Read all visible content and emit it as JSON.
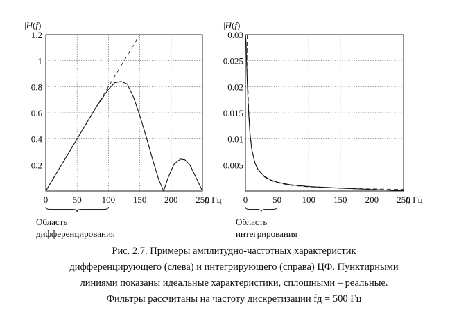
{
  "chart_data": [
    {
      "type": "line",
      "ylabel": "|H(f)|",
      "xlabel": "f, Гц",
      "xlim": [
        0,
        250
      ],
      "ylim": [
        0,
        1.2
      ],
      "grid": true,
      "x_ticks": [
        "0",
        "50",
        "100",
        "150",
        "200",
        "250"
      ],
      "y_ticks": [
        "0.2",
        "0.4",
        "0.6",
        "0.8",
        "1",
        "1.2"
      ],
      "region_label": [
        "Область",
        "дифференцирования"
      ],
      "region_range": [
        0,
        100
      ],
      "series": [
        {
          "style": "dashed",
          "x": [
            0,
            25,
            50,
            75,
            100,
            125,
            150
          ],
          "y": [
            0,
            0.2,
            0.4,
            0.6,
            0.8,
            1.0,
            1.2
          ]
        },
        {
          "style": "solid",
          "x": [
            0,
            20,
            40,
            60,
            80,
            100,
            110,
            120,
            130,
            140,
            150,
            160,
            170,
            180,
            188,
            195,
            205,
            215,
            222,
            230,
            240,
            250
          ],
          "y": [
            0,
            0.16,
            0.32,
            0.48,
            0.64,
            0.78,
            0.83,
            0.84,
            0.82,
            0.72,
            0.58,
            0.42,
            0.25,
            0.09,
            0.0,
            0.1,
            0.21,
            0.245,
            0.24,
            0.2,
            0.1,
            0.0
          ]
        }
      ]
    },
    {
      "type": "line",
      "ylabel": "|H(f)|",
      "xlabel": "f, Гц",
      "xlim": [
        0,
        250
      ],
      "ylim": [
        0,
        0.03
      ],
      "grid": true,
      "x_ticks": [
        "0",
        "50",
        "100",
        "150",
        "200",
        "250"
      ],
      "y_ticks": [
        "0.005",
        "0.01",
        "0.015",
        "0.02",
        "0.025",
        "0.03"
      ],
      "region_label": [
        "Область",
        "интегрирования"
      ],
      "region_range": [
        0,
        50
      ],
      "series": [
        {
          "style": "dashed",
          "x": [
            2.65,
            3,
            4,
            5,
            7,
            10,
            15,
            20,
            30,
            40,
            50,
            70,
            100,
            150,
            200,
            250
          ],
          "y": [
            0.03,
            0.0265,
            0.0199,
            0.0159,
            0.0114,
            0.008,
            0.0053,
            0.004,
            0.0027,
            0.002,
            0.0016,
            0.0011,
            0.0008,
            0.00053,
            0.0004,
            0.00032
          ]
        },
        {
          "style": "solid",
          "x": [
            0,
            1,
            2,
            3,
            4,
            5,
            7,
            10,
            15,
            20,
            30,
            40,
            50,
            70,
            100,
            150,
            200,
            250
          ],
          "y": [
            0.03,
            0.0285,
            0.024,
            0.0205,
            0.0175,
            0.0152,
            0.0112,
            0.008,
            0.0054,
            0.0041,
            0.0028,
            0.0021,
            0.0017,
            0.0012,
            0.00085,
            0.00055,
            0.0003,
            5e-05
          ]
        }
      ]
    }
  ],
  "caption": [
    "Рис. 2.7. Примеры амплитудно-частотных характеристик",
    "дифференцирующего (слева) и интегрирующего (справа) ЦФ. Пунктирными",
    "линиями показаны идеальные характеристики, сплошными – реальные.",
    "Фильтры рассчитаны на частоту дискретизации fд = 500 Гц"
  ]
}
